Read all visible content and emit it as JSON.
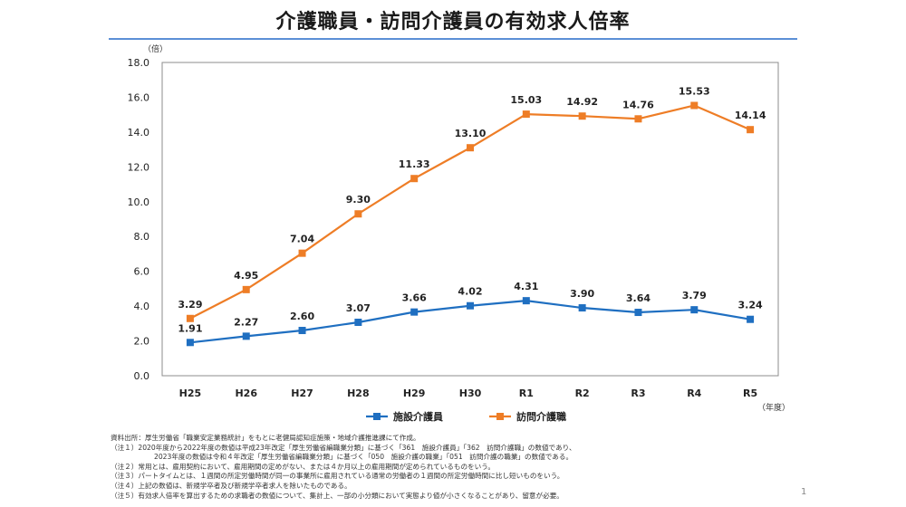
{
  "title": "介護職員・訪問介護員の有効求人倍率",
  "chart_data": {
    "type": "line",
    "title": "介護職員・訪問介護員の有効求人倍率",
    "categories": [
      "H25",
      "H26",
      "H27",
      "H28",
      "H29",
      "H30",
      "R1",
      "R2",
      "R3",
      "R4",
      "R5"
    ],
    "series": [
      {
        "name": "施設介護員",
        "color": "#1f6fc1",
        "values": [
          1.91,
          2.27,
          2.6,
          3.07,
          3.66,
          4.02,
          4.31,
          3.9,
          3.64,
          3.79,
          3.24
        ],
        "labels": [
          "1.91",
          "2.27",
          "2.60",
          "3.07",
          "3.66",
          "4.02",
          "4.31",
          "3.90",
          "3.64",
          "3.79",
          "3.24"
        ]
      },
      {
        "name": "訪問介護職",
        "color": "#ee7d26",
        "values": [
          3.29,
          4.95,
          7.04,
          9.3,
          11.33,
          13.1,
          15.03,
          14.92,
          14.76,
          15.53,
          14.14
        ],
        "labels": [
          "3.29",
          "4.95",
          "7.04",
          "9.30",
          "11.33",
          "13.10",
          "15.03",
          "14.92",
          "14.76",
          "15.53",
          "14.14"
        ]
      }
    ],
    "yticks": [
      "0.0",
      "2.0",
      "4.0",
      "6.0",
      "8.0",
      "10.0",
      "12.0",
      "14.0",
      "16.0",
      "18.0"
    ],
    "ylim": [
      0,
      18
    ],
    "ylabel": "（倍）",
    "xlabel": "（年度）",
    "grid": false,
    "legend": "bottom-center"
  },
  "notes": [
    "資料出所：厚生労働省「職業安定業務統計」をもとに老健局認知症施策・地域介護推進課にて作成。",
    "（注１）2020年度から2022年度の数値は平成23年改定「厚生労働省編職業分類」に基づく「361　施設介護員」「362　訪問介護職」の数値であり、",
    "2023年度の数値は令和４年改定「厚生労働省編職業分類」に基づく「050　施設介護の職業」「051　訪問介護の職業」の数値である。",
    "（注２）常用とは、雇用契約において、雇用期間の定めがない、または４か月以上の雇用期間が定められているものをいう。",
    "（注３）パートタイムとは、１週間の所定労働時間が同一の事業所に雇用されている通常の労働者の１週間の所定労働時間に比し短いものをいう。",
    "（注４）上記の数値は、新規学卒者及び新規学卒者求人を除いたものである。",
    "（注５）有効求人倍率を算出するための求職者の数値について、集計上、一部の小分類において実態より値が小さくなることがあり、留意が必要。"
  ],
  "page_number": "1"
}
